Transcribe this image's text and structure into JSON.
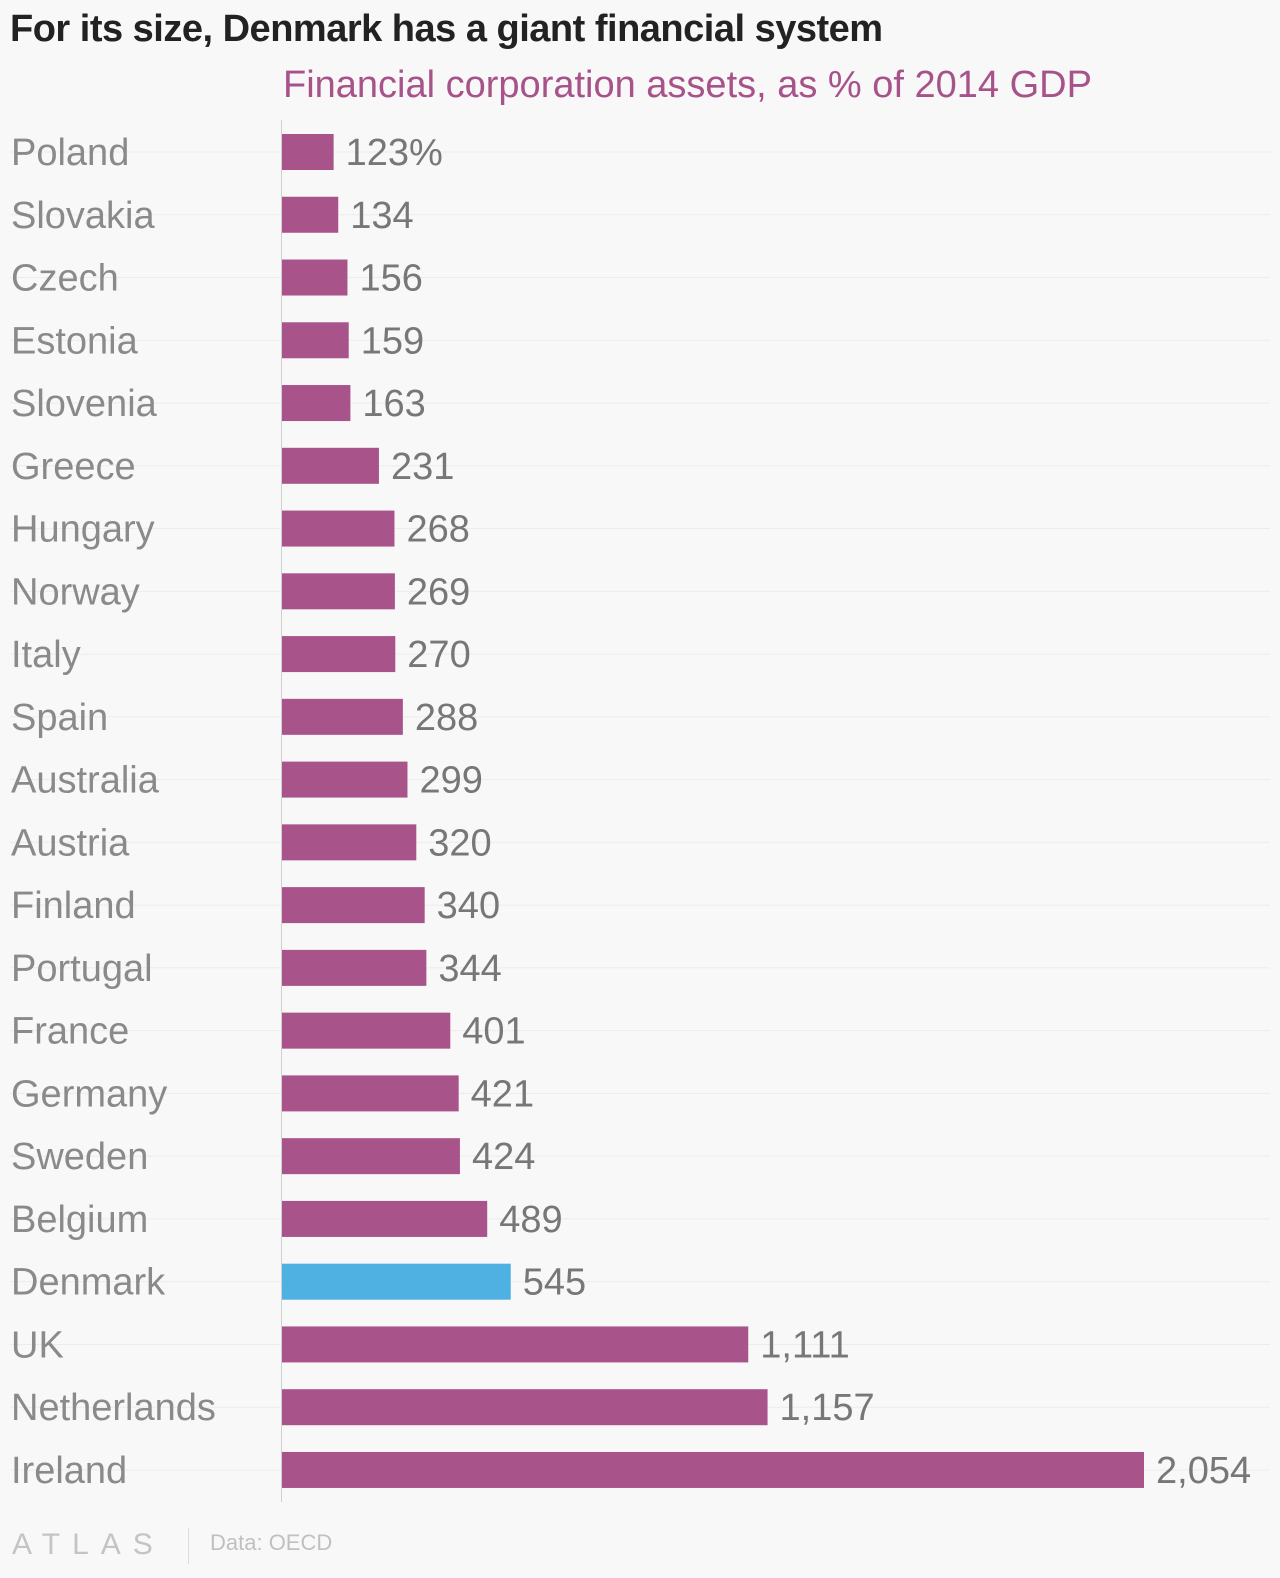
{
  "chart_data": {
    "type": "bar",
    "orientation": "horizontal",
    "title": "For its size, Denmark has a giant financial system",
    "subtitle": "Financial corporation assets, as % of 2014 GDP",
    "categories": [
      "Poland",
      "Slovakia",
      "Czech",
      "Estonia",
      "Slovenia",
      "Greece",
      "Hungary",
      "Norway",
      "Italy",
      "Spain",
      "Australia",
      "Austria",
      "Finland",
      "Portugal",
      "France",
      "Germany",
      "Sweden",
      "Belgium",
      "Denmark",
      "UK",
      "Netherlands",
      "Ireland"
    ],
    "values": [
      123,
      134,
      156,
      159,
      163,
      231,
      268,
      269,
      270,
      288,
      299,
      320,
      340,
      344,
      401,
      421,
      424,
      489,
      545,
      1111,
      1157,
      2054
    ],
    "data_labels": [
      "123%",
      "134",
      "156",
      "159",
      "163",
      "231",
      "268",
      "269",
      "270",
      "288",
      "299",
      "320",
      "340",
      "344",
      "401",
      "421",
      "424",
      "489",
      "545",
      "1,111",
      "1,157",
      "2,054"
    ],
    "xlim": [
      0,
      2054
    ],
    "highlight": "Denmark",
    "colors": {
      "bar": "#a8548a",
      "highlight": "#4fb0e2",
      "label": "#8a8a8a",
      "value": "#777777",
      "grid": "#ececec",
      "axis": "#cfcfcf"
    },
    "grid": true
  },
  "footer": {
    "logo": "ATLAS",
    "source": "Data: OECD"
  }
}
